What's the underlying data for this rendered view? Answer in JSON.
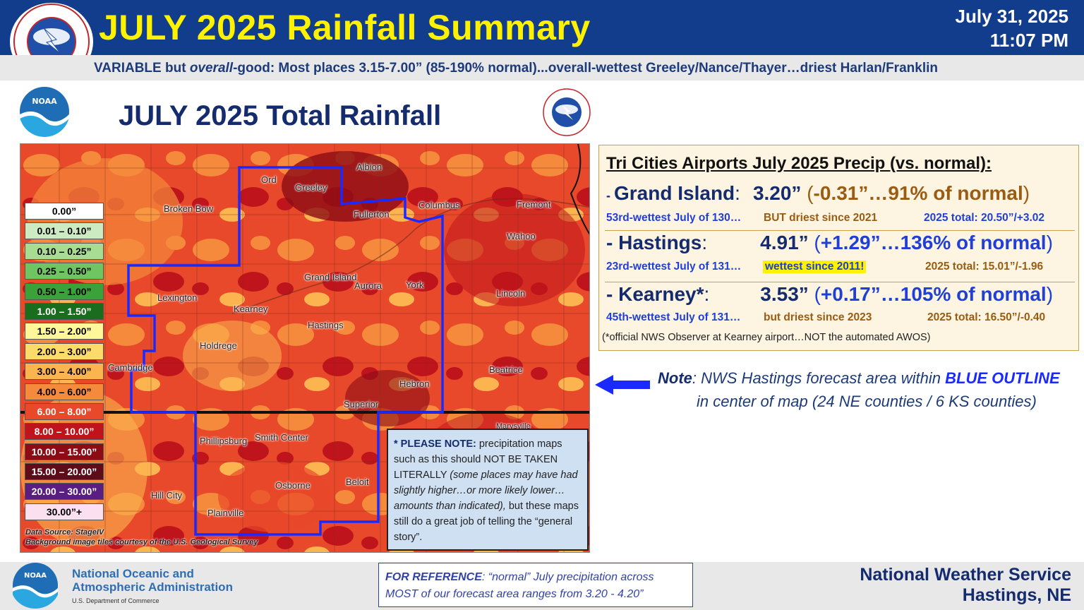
{
  "header": {
    "title": "JULY 2025 Rainfall Summary",
    "date": "July 31, 2025",
    "time": "11:07 PM",
    "subtitle_pre": "VARIABLE but ",
    "subtitle_italic": "overall",
    "subtitle_post": "-good: Most places 3.15-7.00” (85-190% normal)...overall-wettest Greeley/Nance/Thayer…driest Harlan/Franklin"
  },
  "logos": {
    "nws_text": "NATIONAL WEATHER SERVICE",
    "noaa_text": "NOAA"
  },
  "map": {
    "title": "JULY 2025 Total Rainfall",
    "legend": [
      {
        "label": "0.00”",
        "color": "#ffffff",
        "text": "#000000"
      },
      {
        "label": "0.01 – 0.10”",
        "color": "#cdebc3",
        "text": "#000000"
      },
      {
        "label": "0.10 – 0.25”",
        "color": "#a8dc93",
        "text": "#000000"
      },
      {
        "label": "0.25 – 0.50”",
        "color": "#6ec561",
        "text": "#000000"
      },
      {
        "label": "0.50 – 1.00”",
        "color": "#3ba23a",
        "text": "#000000"
      },
      {
        "label": "1.00 – 1.50”",
        "color": "#1b6d1e",
        "text": "#ffffff"
      },
      {
        "label": "1.50 – 2.00”",
        "color": "#fff799",
        "text": "#000000"
      },
      {
        "label": "2.00 – 3.00”",
        "color": "#fddb6b",
        "text": "#000000"
      },
      {
        "label": "3.00 – 4.00”",
        "color": "#fbb450",
        "text": "#000000"
      },
      {
        "label": "4.00 – 6.00”",
        "color": "#f58a3c",
        "text": "#000000"
      },
      {
        "label": "6.00 – 8.00”",
        "color": "#e8492a",
        "text": "#ffffff"
      },
      {
        "label": "8.00 – 10.00”",
        "color": "#c0141c",
        "text": "#ffffff"
      },
      {
        "label": "10.00 – 15.00”",
        "color": "#8c0b15",
        "text": "#ffffff"
      },
      {
        "label": "15.00 – 20.00”",
        "color": "#5e0b1a",
        "text": "#ffffff"
      },
      {
        "label": "20.00 – 30.00”",
        "color": "#5a1e82",
        "text": "#ffffff"
      },
      {
        "label": "30.00”+",
        "color": "#fbe0f0",
        "text": "#000000"
      }
    ],
    "cities": [
      {
        "name": "Albion"
      },
      {
        "name": "Ord"
      },
      {
        "name": "Greeley"
      },
      {
        "name": "Broken Bow"
      },
      {
        "name": "Fullerton"
      },
      {
        "name": "Columbus"
      },
      {
        "name": "Fremont"
      },
      {
        "name": "Wahoo"
      },
      {
        "name": "Lexington"
      },
      {
        "name": "Kearney"
      },
      {
        "name": "Grand Island"
      },
      {
        "name": "Aurora"
      },
      {
        "name": "York"
      },
      {
        "name": "Lincoln"
      },
      {
        "name": "Hastings"
      },
      {
        "name": "Holdrege"
      },
      {
        "name": "Cambridge"
      },
      {
        "name": "Beatrice"
      },
      {
        "name": "Hebron"
      },
      {
        "name": "Superior"
      },
      {
        "name": "Phillipsburg"
      },
      {
        "name": "Smith Center"
      },
      {
        "name": "Osborne"
      },
      {
        "name": "Beloit"
      },
      {
        "name": "Hill City"
      },
      {
        "name": "Plainville"
      },
      {
        "name": "Marysville"
      }
    ],
    "credit1": "Data Source: StageIV",
    "credit2": "Background image tiles courtesy of the U.S. Geological Survey"
  },
  "note_box": {
    "bold": "* PLEASE NOTE:",
    "text1": " precipitation maps such as this should NOT BE TAKEN LITERALLY ",
    "italic": "(some places may have had slightly higher…or more likely lower… amounts than indicated),",
    "text2": " but these maps still do a great job of telling the “general story”."
  },
  "stats": {
    "heading": "Tri Cities Airports July 2025 Precip (vs. normal):",
    "airports": [
      {
        "dash": "- ",
        "name": "Grand Island",
        "colon": ":",
        "value": "3.20”",
        "paren_open": " (",
        "departure": "-0.31”…91% of normal",
        "paren_close": ")",
        "rank": "53rd-wettest July of 130…",
        "note": "BUT driest since 2021",
        "total": "2025 total: 20.50”/+3.02",
        "value_color": "#142b6e",
        "departure_color": "#9a5b12",
        "note_color": "#9a5b12"
      },
      {
        "dash": "- ",
        "name": "Hastings",
        "colon": ":",
        "value": "4.91”",
        "paren_open": " (",
        "departure": "+1.29”…136% of normal",
        "paren_close": ")",
        "rank": "23rd-wettest July of 131…",
        "note": "wettest since 2011!",
        "total": "2025 total: 15.01”/-1.96",
        "value_color": "#142b6e",
        "departure_color": "#1f3fd6",
        "note_color": "#1f3fd6"
      },
      {
        "dash": "- ",
        "name": "Kearney*",
        "colon": ":",
        "value": "3.53”",
        "paren_open": " (",
        "departure": "+0.17”…105% of normal",
        "paren_close": ")",
        "rank": "45th-wettest July of 131…",
        "note": "but driest since 2023",
        "total": "2025 total: 16.50”/-0.40",
        "value_color": "#142b6e",
        "departure_color": "#1f3fd6",
        "note_color": "#9a5b12"
      }
    ],
    "footnote": "(*official NWS Observer at Kearney airport…NOT the automated AWOS)"
  },
  "area_note": {
    "label": "Note",
    "line1": ": NWS Hastings forecast area within ",
    "emph": "BLUE OUTLINE",
    "line2": "in center of map (24 NE counties / 6 KS counties)"
  },
  "footer": {
    "noaa_line1": "National Oceanic and",
    "noaa_line2": "Atmospheric Administration",
    "commerce": "U.S. Department of Commerce",
    "ref_label": "FOR REFERENCE",
    "ref_text": ": “normal” July precipitation across MOST of our forecast area ranges from 3.20 - 4.20”",
    "nws_line1": "National Weather Service",
    "nws_line2": "Hastings, NE"
  }
}
